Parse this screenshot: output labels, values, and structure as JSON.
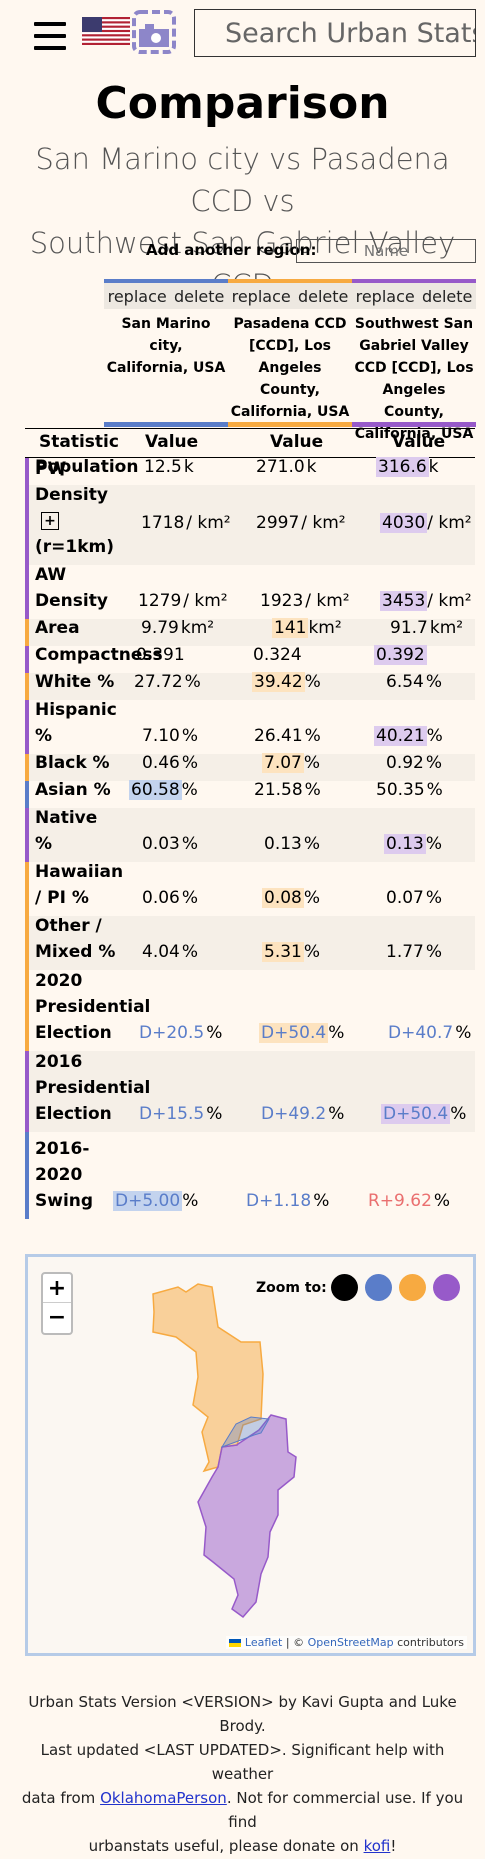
{
  "header": {
    "search_placeholder": "Search Urban Stats",
    "flag_icon": "us-flag-icon",
    "logo_icon": "urban-stats-logo-icon"
  },
  "page": {
    "title": "Comparison",
    "subtitle_line1": "San Marino city vs Pasadena CCD vs",
    "subtitle_line2": "Southwest San Gabriel Valley CCD",
    "add_region_label": "Add another region:",
    "add_region_placeholder": "Name"
  },
  "colors": {
    "blue": "#5a7dc9",
    "orange": "#f7aa41",
    "purple": "#975ac9",
    "black": "#000000"
  },
  "regions": [
    {
      "replace": "replace",
      "delete": "delete",
      "name_lines": [
        "San Marino city,",
        "California, USA"
      ]
    },
    {
      "replace": "replace",
      "delete": "delete",
      "name_lines": [
        "Pasadena CCD",
        "[CCD], Los",
        "Angeles County,",
        "California, USA"
      ]
    },
    {
      "replace": "replace",
      "delete": "delete",
      "name_lines": [
        "Southwest San",
        "Gabriel Valley",
        "CCD [CCD], Los",
        "Angeles County,",
        "California, USA"
      ]
    }
  ],
  "table": {
    "headers": {
      "statistic": "Statistic",
      "value1": "Value",
      "value2": "Value",
      "value3": "Value"
    },
    "rows": [
      {
        "label": "Population",
        "v": [
          [
            "12.5",
            "k"
          ],
          [
            "271.0",
            "k"
          ],
          [
            "316.6",
            "k"
          ]
        ]
      },
      {
        "label": "PW Density (r=1km)",
        "v": [
          [
            "1718",
            "/ km²"
          ],
          [
            "2997",
            "/ km²"
          ],
          [
            "4030",
            "/ km²"
          ]
        ]
      },
      {
        "label": "AW Density",
        "v": [
          [
            "1279",
            "/ km²"
          ],
          [
            "1923",
            "/ km²"
          ],
          [
            "3453",
            "/ km²"
          ]
        ]
      },
      {
        "label": "Area",
        "v": [
          [
            "9.79",
            "km²"
          ],
          [
            "141",
            "km²"
          ],
          [
            "91.7",
            "km²"
          ]
        ]
      },
      {
        "label": "Compactness",
        "v": [
          [
            "0.391",
            ""
          ],
          [
            "0.324",
            ""
          ],
          [
            "0.392",
            ""
          ]
        ]
      },
      {
        "label": "White %",
        "v": [
          [
            "27.72",
            "%"
          ],
          [
            "39.42",
            "%"
          ],
          [
            "6.54",
            "%"
          ]
        ]
      },
      {
        "label": "Hispanic %",
        "v": [
          [
            "7.10",
            "%"
          ],
          [
            "26.41",
            "%"
          ],
          [
            "40.21",
            "%"
          ]
        ]
      },
      {
        "label": "Black %",
        "v": [
          [
            "0.46",
            "%"
          ],
          [
            "7.07",
            "%"
          ],
          [
            "0.92",
            "%"
          ]
        ]
      },
      {
        "label": "Asian %",
        "v": [
          [
            "60.58",
            "%"
          ],
          [
            "21.58",
            "%"
          ],
          [
            "50.35",
            "%"
          ]
        ]
      },
      {
        "label": "Native %",
        "v": [
          [
            "0.03",
            "%"
          ],
          [
            "0.13",
            "%"
          ],
          [
            "0.13",
            "%"
          ]
        ]
      },
      {
        "label": "Hawaiian / PI %",
        "v": [
          [
            "0.06",
            "%"
          ],
          [
            "0.08",
            "%"
          ],
          [
            "0.07",
            "%"
          ]
        ]
      },
      {
        "label": "Other / Mixed %",
        "v": [
          [
            "4.04",
            "%"
          ],
          [
            "5.31",
            "%"
          ],
          [
            "1.77",
            "%"
          ]
        ]
      },
      {
        "label": "2020 Presidential Election",
        "v": [
          [
            "D+20.5",
            "%"
          ],
          [
            "D+50.4",
            "%"
          ],
          [
            "D+40.7",
            "%"
          ]
        ]
      },
      {
        "label": "2016 Presidential Election",
        "v": [
          [
            "D+15.5",
            "%"
          ],
          [
            "D+49.2",
            "%"
          ],
          [
            "D+50.4",
            "%"
          ]
        ]
      },
      {
        "label": "2016-2020 Swing",
        "v": [
          [
            "D+5.00",
            "%"
          ],
          [
            "D+1.18",
            "%"
          ],
          [
            "R+9.62",
            "%"
          ]
        ]
      }
    ]
  },
  "map": {
    "zoom_in": "+",
    "zoom_out": "−",
    "zoom_to_label": "Zoom to:",
    "attribution_leaflet": "Leaflet",
    "attribution_sep": " | © ",
    "attribution_osm": "OpenStreetMap",
    "attribution_tail": " contributors"
  },
  "footer": {
    "line1": "Urban Stats Version <VERSION> by Kavi Gupta and Luke Brody.",
    "line2": "Last updated <LAST UPDATED>. Significant help with weather",
    "line3a": "data from ",
    "link1": "OklahomaPerson",
    "line3b": ". Not for commercial use. If you find",
    "line4a": "urbanstats useful, please donate on ",
    "link2": "kofi",
    "line4b": "!"
  }
}
